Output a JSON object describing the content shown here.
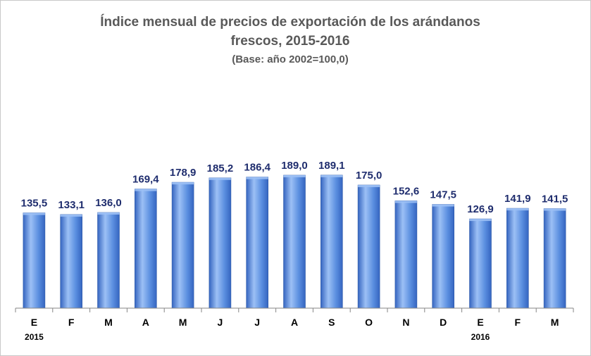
{
  "chart_data": {
    "type": "bar",
    "title_lines": [
      "Índice mensual de precios de exportación de los arándanos",
      "frescos, 2015-2016"
    ],
    "subtitle": "(Base: año 2002=100,0)",
    "categories": [
      "E",
      "F",
      "M",
      "A",
      "M",
      "J",
      "J",
      "A",
      "S",
      "O",
      "N",
      "D",
      "E",
      "F",
      "M"
    ],
    "year_labels": [
      {
        "category_index": 0,
        "text": "2015"
      },
      {
        "category_index": 12,
        "text": "2016"
      }
    ],
    "values": [
      135.5,
      133.1,
      136.0,
      169.4,
      178.9,
      185.2,
      186.4,
      189.0,
      189.1,
      175.0,
      152.6,
      147.5,
      126.9,
      141.9,
      141.5
    ],
    "value_labels": [
      "135,5",
      "133,1",
      "136,0",
      "169,4",
      "178,9",
      "185,2",
      "186,4",
      "189,0",
      "189,1",
      "175,0",
      "152,6",
      "147,5",
      "126,9",
      "141,9",
      "141,5"
    ],
    "xlabel": "",
    "ylabel": "",
    "ylim": [
      0,
      200
    ],
    "grid": false,
    "legend": "none",
    "bar_color": "#5b8fe0",
    "bar_color_light": "#9cc0f5",
    "bar_color_dark": "#3565c0",
    "label_color": "#1f2d6e",
    "title_color": "#595959"
  }
}
